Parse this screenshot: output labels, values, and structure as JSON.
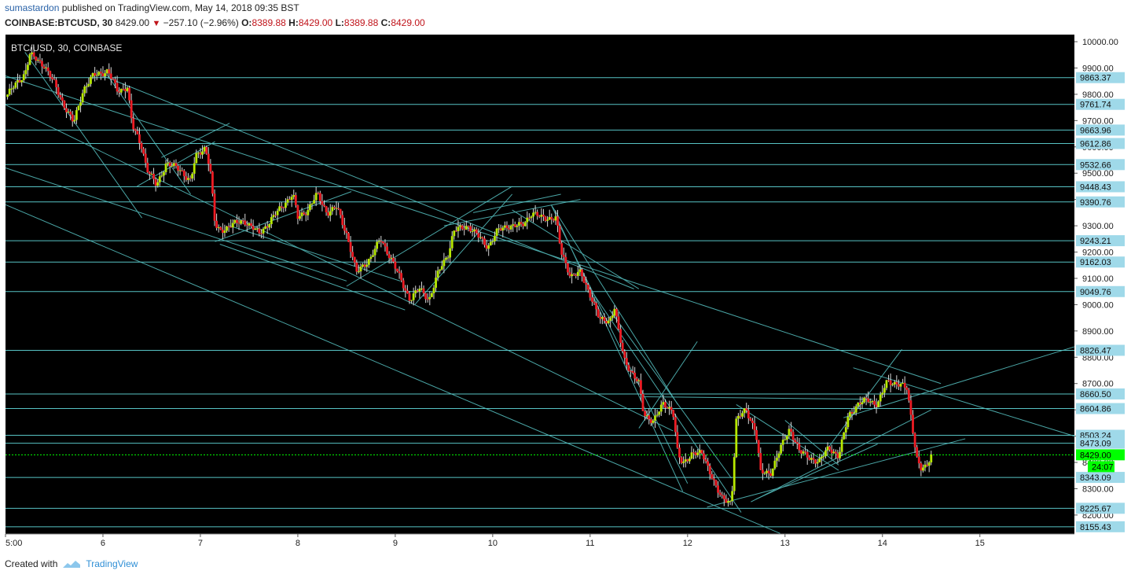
{
  "header": {
    "author": "sumastardon",
    "published_text": "published on TradingView.com, May 14, 2018 09:35 BST",
    "symbol": "COINBASE:BTCUSD, 30",
    "last": "8429.00",
    "change": "−257.10 (−2.96%)",
    "o_label": "O:",
    "o_value": "8389.88",
    "h_label": "H:",
    "h_value": "8429.00",
    "l_label": "L:",
    "l_value": "8389.88",
    "c_label": "C:",
    "c_value": "8429.00"
  },
  "footer": {
    "created_with": "Created with",
    "brand": "TradingView"
  },
  "colors": {
    "background": "#000000",
    "up_candle": "#b7e800",
    "down_candle": "#ee1c24",
    "wick": "#d9d9d9",
    "level_line": "#57c3c4",
    "trend_line": "#4aa6a6",
    "label_bg": "#9fd9e9",
    "current_price": "#00ff00"
  },
  "chart_data": {
    "type": "candlestick",
    "title": "BTC/USD, 30, COINBASE",
    "x_ticks": [
      {
        "day": 5,
        "label": "5:00"
      },
      {
        "day": 6,
        "label": "6"
      },
      {
        "day": 7,
        "label": "7"
      },
      {
        "day": 8,
        "label": "8"
      },
      {
        "day": 9,
        "label": "9"
      },
      {
        "day": 10,
        "label": "10"
      },
      {
        "day": 11,
        "label": "11"
      },
      {
        "day": 12,
        "label": "12"
      },
      {
        "day": 13,
        "label": "13"
      },
      {
        "day": 14,
        "label": "14"
      },
      {
        "day": 15,
        "label": "15"
      }
    ],
    "x_range": [
      5,
      15.97
    ],
    "y_range": [
      8128,
      10027
    ],
    "y_ticks": [
      "10000.00",
      "9900.00",
      "9800.00",
      "9700.00",
      "9600.00",
      "9500.00",
      "9400.00",
      "9300.00",
      "9200.00",
      "9100.00",
      "9000.00",
      "8900.00",
      "8800.00",
      "8700.00",
      "8600.00",
      "8500.00",
      "8400.00",
      "8300.00",
      "8200.00"
    ],
    "horizontal_levels": [
      "9863.37",
      "9761.74",
      "9663.96",
      "9612.86",
      "9532.66",
      "9448.43",
      "9390.76",
      "9243.21",
      "9162.03",
      "9049.76",
      "8826.47",
      "8660.50",
      "8604.86",
      "8503.24",
      "8473.09",
      "8343.09",
      "8225.67",
      "8155.43"
    ],
    "current_price": "8429.00",
    "countdown": "24:07",
    "price_path": [
      [
        5.0,
        9790
      ],
      [
        5.2,
        9880
      ],
      [
        5.25,
        9950
      ],
      [
        5.4,
        9910
      ],
      [
        5.5,
        9840
      ],
      [
        5.6,
        9760
      ],
      [
        5.7,
        9690
      ],
      [
        5.8,
        9820
      ],
      [
        5.9,
        9870
      ],
      [
        6.05,
        9890
      ],
      [
        6.15,
        9810
      ],
      [
        6.25,
        9830
      ],
      [
        6.3,
        9680
      ],
      [
        6.4,
        9600
      ],
      [
        6.45,
        9520
      ],
      [
        6.55,
        9450
      ],
      [
        6.65,
        9540
      ],
      [
        6.8,
        9510
      ],
      [
        6.9,
        9470
      ],
      [
        6.95,
        9560
      ],
      [
        7.05,
        9600
      ],
      [
        7.1,
        9520
      ],
      [
        7.15,
        9300
      ],
      [
        7.2,
        9280
      ],
      [
        7.3,
        9300
      ],
      [
        7.45,
        9320
      ],
      [
        7.6,
        9270
      ],
      [
        7.7,
        9310
      ],
      [
        7.85,
        9380
      ],
      [
        7.95,
        9420
      ],
      [
        8.0,
        9330
      ],
      [
        8.1,
        9360
      ],
      [
        8.2,
        9420
      ],
      [
        8.3,
        9350
      ],
      [
        8.4,
        9370
      ],
      [
        8.5,
        9270
      ],
      [
        8.55,
        9200
      ],
      [
        8.6,
        9120
      ],
      [
        8.75,
        9180
      ],
      [
        8.85,
        9250
      ],
      [
        8.95,
        9180
      ],
      [
        9.05,
        9100
      ],
      [
        9.15,
        9020
      ],
      [
        9.25,
        9060
      ],
      [
        9.35,
        9020
      ],
      [
        9.45,
        9130
      ],
      [
        9.55,
        9200
      ],
      [
        9.6,
        9280
      ],
      [
        9.75,
        9300
      ],
      [
        9.85,
        9260
      ],
      [
        9.95,
        9220
      ],
      [
        10.05,
        9280
      ],
      [
        10.15,
        9300
      ],
      [
        10.3,
        9300
      ],
      [
        10.4,
        9350
      ],
      [
        10.5,
        9330
      ],
      [
        10.65,
        9330
      ],
      [
        10.7,
        9200
      ],
      [
        10.8,
        9110
      ],
      [
        10.9,
        9120
      ],
      [
        11.0,
        9040
      ],
      [
        11.1,
        8940
      ],
      [
        11.2,
        8940
      ],
      [
        11.25,
        8990
      ],
      [
        11.3,
        8880
      ],
      [
        11.35,
        8790
      ],
      [
        11.4,
        8760
      ],
      [
        11.5,
        8700
      ],
      [
        11.55,
        8580
      ],
      [
        11.65,
        8560
      ],
      [
        11.75,
        8620
      ],
      [
        11.85,
        8600
      ],
      [
        11.9,
        8430
      ],
      [
        11.95,
        8390
      ],
      [
        12.05,
        8440
      ],
      [
        12.15,
        8430
      ],
      [
        12.25,
        8350
      ],
      [
        12.3,
        8300
      ],
      [
        12.35,
        8260
      ],
      [
        12.45,
        8250
      ],
      [
        12.5,
        8560
      ],
      [
        12.6,
        8600
      ],
      [
        12.7,
        8520
      ],
      [
        12.75,
        8360
      ],
      [
        12.85,
        8360
      ],
      [
        12.95,
        8450
      ],
      [
        13.05,
        8530
      ],
      [
        13.15,
        8440
      ],
      [
        13.25,
        8420
      ],
      [
        13.35,
        8400
      ],
      [
        13.45,
        8460
      ],
      [
        13.55,
        8420
      ],
      [
        13.65,
        8580
      ],
      [
        13.75,
        8620
      ],
      [
        13.85,
        8640
      ],
      [
        13.95,
        8620
      ],
      [
        14.05,
        8710
      ],
      [
        14.15,
        8700
      ],
      [
        14.25,
        8680
      ],
      [
        14.3,
        8560
      ],
      [
        14.35,
        8420
      ],
      [
        14.4,
        8370
      ],
      [
        14.45,
        8380
      ],
      [
        14.5,
        8429
      ]
    ]
  }
}
